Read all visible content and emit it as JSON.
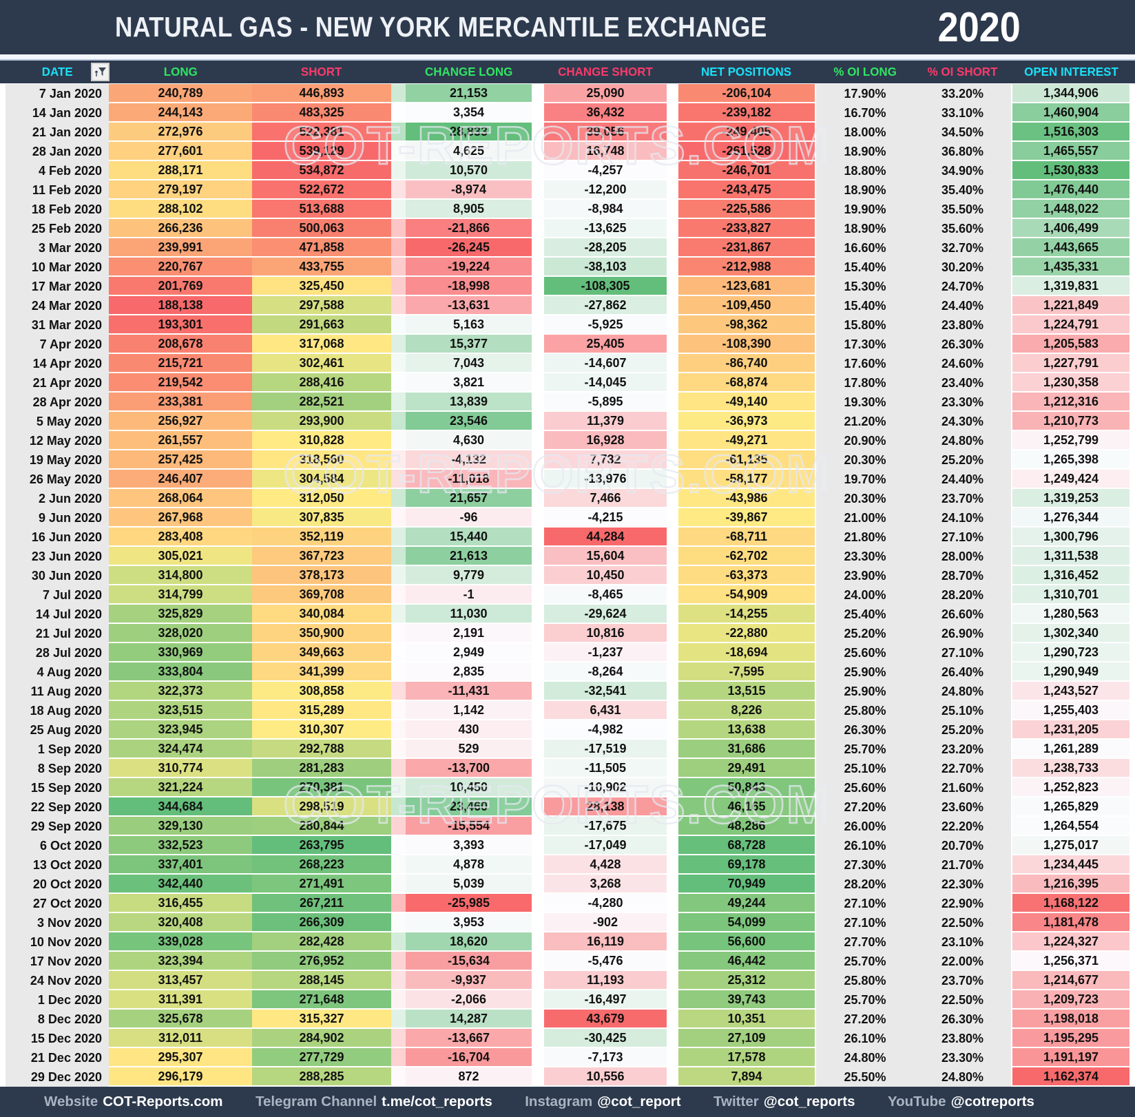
{
  "header": {
    "title": "NATURAL GAS - NEW YORK MERCANTILE EXCHANGE",
    "year": "2020"
  },
  "watermark": {
    "text": "COT-REPORTS.COM"
  },
  "filter": {
    "icon": "filter-icon"
  },
  "palette": {
    "bar_background": "#2d3a4d",
    "header_cyan": "#18E0F8",
    "header_green": "#30E464",
    "header_pink": "#FA3A6B",
    "heat_red": "#F8696B",
    "heat_yellow": "#FFEB84",
    "heat_green": "#63BE7B",
    "heat_white": "#FCFCFF",
    "neutral_cell": "#e9e9e9"
  },
  "columns": [
    {
      "key": "date",
      "label": "DATE",
      "color": "#18E0F8"
    },
    {
      "key": "long",
      "label": "LONG",
      "color": "#30E464"
    },
    {
      "key": "short",
      "label": "SHORT",
      "color": "#FA3A6B"
    },
    {
      "key": "change_long",
      "label": "CHANGE LONG",
      "color": "#30E464"
    },
    {
      "key": "change_short",
      "label": "CHANGE SHORT",
      "color": "#FA3A6B"
    },
    {
      "key": "net",
      "label": "NET POSITIONS",
      "color": "#18E0F8"
    },
    {
      "key": "oi_long",
      "label": "% OI LONG",
      "color": "#30E464"
    },
    {
      "key": "oi_short",
      "label": "% OI SHORT",
      "color": "#FA3A6B"
    },
    {
      "key": "open_interest",
      "label": "OPEN INTEREST",
      "color": "#18E0F8"
    }
  ],
  "scales": {
    "long": [
      "#F8696B",
      "#FFEB84",
      "#63BE7B"
    ],
    "short": [
      "#63BE7B",
      "#FFEB84",
      "#F8696B"
    ],
    "change_long": [
      "#F8696B",
      "#FCFCFF",
      "#63BE7B"
    ],
    "change_short": [
      "#63BE7B",
      "#FCFCFF",
      "#F8696B"
    ],
    "net": [
      "#F8696B",
      "#FFEB84",
      "#63BE7B"
    ],
    "open_interest": [
      "#F8696B",
      "#FCFCFF",
      "#63BE7B"
    ]
  },
  "rows": [
    [
      "7 Jan 2020",
      "240,789",
      "446,893",
      "21,153",
      "25,090",
      "-206,104",
      "17.90%",
      "33.20%",
      "1,344,906"
    ],
    [
      "14 Jan 2020",
      "244,143",
      "483,325",
      "3,354",
      "36,432",
      "-239,182",
      "16.70%",
      "33.10%",
      "1,460,904"
    ],
    [
      "21 Jan 2020",
      "272,976",
      "522,381",
      "28,833",
      "39,056",
      "-249,405",
      "18.00%",
      "34.50%",
      "1,516,303"
    ],
    [
      "28 Jan 2020",
      "277,601",
      "539,129",
      "4,625",
      "16,748",
      "-261,528",
      "18.90%",
      "36.80%",
      "1,465,557"
    ],
    [
      "4 Feb 2020",
      "288,171",
      "534,872",
      "10,570",
      "-4,257",
      "-246,701",
      "18.80%",
      "34.90%",
      "1,530,833"
    ],
    [
      "11 Feb 2020",
      "279,197",
      "522,672",
      "-8,974",
      "-12,200",
      "-243,475",
      "18.90%",
      "35.40%",
      "1,476,440"
    ],
    [
      "18 Feb 2020",
      "288,102",
      "513,688",
      "8,905",
      "-8,984",
      "-225,586",
      "19.90%",
      "35.50%",
      "1,448,022"
    ],
    [
      "25 Feb 2020",
      "266,236",
      "500,063",
      "-21,866",
      "-13,625",
      "-233,827",
      "18.90%",
      "35.60%",
      "1,406,499"
    ],
    [
      "3 Mar 2020",
      "239,991",
      "471,858",
      "-26,245",
      "-28,205",
      "-231,867",
      "16.60%",
      "32.70%",
      "1,443,665"
    ],
    [
      "10 Mar 2020",
      "220,767",
      "433,755",
      "-19,224",
      "-38,103",
      "-212,988",
      "15.40%",
      "30.20%",
      "1,435,331"
    ],
    [
      "17 Mar 2020",
      "201,769",
      "325,450",
      "-18,998",
      "-108,305",
      "-123,681",
      "15.30%",
      "24.70%",
      "1,319,831"
    ],
    [
      "24 Mar 2020",
      "188,138",
      "297,588",
      "-13,631",
      "-27,862",
      "-109,450",
      "15.40%",
      "24.40%",
      "1,221,849"
    ],
    [
      "31 Mar 2020",
      "193,301",
      "291,663",
      "5,163",
      "-5,925",
      "-98,362",
      "15.80%",
      "23.80%",
      "1,224,791"
    ],
    [
      "7 Apr 2020",
      "208,678",
      "317,068",
      "15,377",
      "25,405",
      "-108,390",
      "17.30%",
      "26.30%",
      "1,205,583"
    ],
    [
      "14 Apr 2020",
      "215,721",
      "302,461",
      "7,043",
      "-14,607",
      "-86,740",
      "17.60%",
      "24.60%",
      "1,227,791"
    ],
    [
      "21 Apr 2020",
      "219,542",
      "288,416",
      "3,821",
      "-14,045",
      "-68,874",
      "17.80%",
      "23.40%",
      "1,230,358"
    ],
    [
      "28 Apr 2020",
      "233,381",
      "282,521",
      "13,839",
      "-5,895",
      "-49,140",
      "19.30%",
      "23.30%",
      "1,212,316"
    ],
    [
      "5 May 2020",
      "256,927",
      "293,900",
      "23,546",
      "11,379",
      "-36,973",
      "21.20%",
      "24.30%",
      "1,210,773"
    ],
    [
      "12 May 2020",
      "261,557",
      "310,828",
      "4,630",
      "16,928",
      "-49,271",
      "20.90%",
      "24.80%",
      "1,252,799"
    ],
    [
      "19 May 2020",
      "257,425",
      "318,560",
      "-4,132",
      "7,732",
      "-61,135",
      "20.30%",
      "25.20%",
      "1,265,398"
    ],
    [
      "26 May 2020",
      "246,407",
      "304,584",
      "-11,018",
      "-13,976",
      "-58,177",
      "19.70%",
      "24.40%",
      "1,249,424"
    ],
    [
      "2 Jun 2020",
      "268,064",
      "312,050",
      "21,657",
      "7,466",
      "-43,986",
      "20.30%",
      "23.70%",
      "1,319,253"
    ],
    [
      "9 Jun 2020",
      "267,968",
      "307,835",
      "-96",
      "-4,215",
      "-39,867",
      "21.00%",
      "24.10%",
      "1,276,344"
    ],
    [
      "16 Jun 2020",
      "283,408",
      "352,119",
      "15,440",
      "44,284",
      "-68,711",
      "21.80%",
      "27.10%",
      "1,300,796"
    ],
    [
      "23 Jun 2020",
      "305,021",
      "367,723",
      "21,613",
      "15,604",
      "-62,702",
      "23.30%",
      "28.00%",
      "1,311,538"
    ],
    [
      "30 Jun 2020",
      "314,800",
      "378,173",
      "9,779",
      "10,450",
      "-63,373",
      "23.90%",
      "28.70%",
      "1,316,452"
    ],
    [
      "7 Jul 2020",
      "314,799",
      "369,708",
      "-1",
      "-8,465",
      "-54,909",
      "24.00%",
      "28.20%",
      "1,310,701"
    ],
    [
      "14 Jul 2020",
      "325,829",
      "340,084",
      "11,030",
      "-29,624",
      "-14,255",
      "25.40%",
      "26.60%",
      "1,280,563"
    ],
    [
      "21 Jul 2020",
      "328,020",
      "350,900",
      "2,191",
      "10,816",
      "-22,880",
      "25.20%",
      "26.90%",
      "1,302,340"
    ],
    [
      "28 Jul 2020",
      "330,969",
      "349,663",
      "2,949",
      "-1,237",
      "-18,694",
      "25.60%",
      "27.10%",
      "1,290,723"
    ],
    [
      "4 Aug 2020",
      "333,804",
      "341,399",
      "2,835",
      "-8,264",
      "-7,595",
      "25.90%",
      "26.40%",
      "1,290,949"
    ],
    [
      "11 Aug 2020",
      "322,373",
      "308,858",
      "-11,431",
      "-32,541",
      "13,515",
      "25.90%",
      "24.80%",
      "1,243,527"
    ],
    [
      "18 Aug 2020",
      "323,515",
      "315,289",
      "1,142",
      "6,431",
      "8,226",
      "25.80%",
      "25.10%",
      "1,255,403"
    ],
    [
      "25 Aug 2020",
      "323,945",
      "310,307",
      "430",
      "-4,982",
      "13,638",
      "26.30%",
      "25.20%",
      "1,231,205"
    ],
    [
      "1 Sep 2020",
      "324,474",
      "292,788",
      "529",
      "-17,519",
      "31,686",
      "25.70%",
      "23.20%",
      "1,261,289"
    ],
    [
      "8 Sep 2020",
      "310,774",
      "281,283",
      "-13,700",
      "-11,505",
      "29,491",
      "25.10%",
      "22.70%",
      "1,238,733"
    ],
    [
      "15 Sep 2020",
      "321,224",
      "270,381",
      "10,450",
      "-10,902",
      "50,843",
      "25.60%",
      "21.60%",
      "1,252,823"
    ],
    [
      "22 Sep 2020",
      "344,684",
      "298,519",
      "23,460",
      "28,138",
      "46,165",
      "27.20%",
      "23.60%",
      "1,265,829"
    ],
    [
      "29 Sep 2020",
      "329,130",
      "280,844",
      "-15,554",
      "-17,675",
      "48,286",
      "26.00%",
      "22.20%",
      "1,264,554"
    ],
    [
      "6 Oct 2020",
      "332,523",
      "263,795",
      "3,393",
      "-17,049",
      "68,728",
      "26.10%",
      "20.70%",
      "1,275,017"
    ],
    [
      "13 Oct 2020",
      "337,401",
      "268,223",
      "4,878",
      "4,428",
      "69,178",
      "27.30%",
      "21.70%",
      "1,234,445"
    ],
    [
      "20 Oct 2020",
      "342,440",
      "271,491",
      "5,039",
      "3,268",
      "70,949",
      "28.20%",
      "22.30%",
      "1,216,395"
    ],
    [
      "27 Oct 2020",
      "316,455",
      "267,211",
      "-25,985",
      "-4,280",
      "49,244",
      "27.10%",
      "22.90%",
      "1,168,122"
    ],
    [
      "3 Nov 2020",
      "320,408",
      "266,309",
      "3,953",
      "-902",
      "54,099",
      "27.10%",
      "22.50%",
      "1,181,478"
    ],
    [
      "10 Nov 2020",
      "339,028",
      "282,428",
      "18,620",
      "16,119",
      "56,600",
      "27.70%",
      "23.10%",
      "1,224,327"
    ],
    [
      "17 Nov 2020",
      "323,394",
      "276,952",
      "-15,634",
      "-5,476",
      "46,442",
      "25.70%",
      "22.00%",
      "1,256,371"
    ],
    [
      "24 Nov 2020",
      "313,457",
      "288,145",
      "-9,937",
      "11,193",
      "25,312",
      "25.80%",
      "23.70%",
      "1,214,677"
    ],
    [
      "1 Dec 2020",
      "311,391",
      "271,648",
      "-2,066",
      "-16,497",
      "39,743",
      "25.70%",
      "22.50%",
      "1,209,723"
    ],
    [
      "8 Dec 2020",
      "325,678",
      "315,327",
      "14,287",
      "43,679",
      "10,351",
      "27.20%",
      "26.30%",
      "1,198,018"
    ],
    [
      "15 Dec 2020",
      "312,011",
      "284,902",
      "-13,667",
      "-30,425",
      "27,109",
      "26.10%",
      "23.80%",
      "1,195,295"
    ],
    [
      "21 Dec 2020",
      "295,307",
      "277,729",
      "-16,704",
      "-7,173",
      "17,578",
      "24.80%",
      "23.30%",
      "1,191,197"
    ],
    [
      "29 Dec 2020",
      "296,179",
      "288,285",
      "872",
      "10,556",
      "7,894",
      "25.50%",
      "24.80%",
      "1,162,374"
    ]
  ],
  "footer": {
    "items": [
      {
        "label": "Website",
        "value": "COT-Reports.com"
      },
      {
        "label": "Telegram Channel",
        "value": "t.me/cot_reports"
      },
      {
        "label": "Instagram",
        "value": "@cot_report"
      },
      {
        "label": "Twitter",
        "value": "@cot_reports"
      },
      {
        "label": "YouTube",
        "value": "@cotreports"
      }
    ]
  }
}
